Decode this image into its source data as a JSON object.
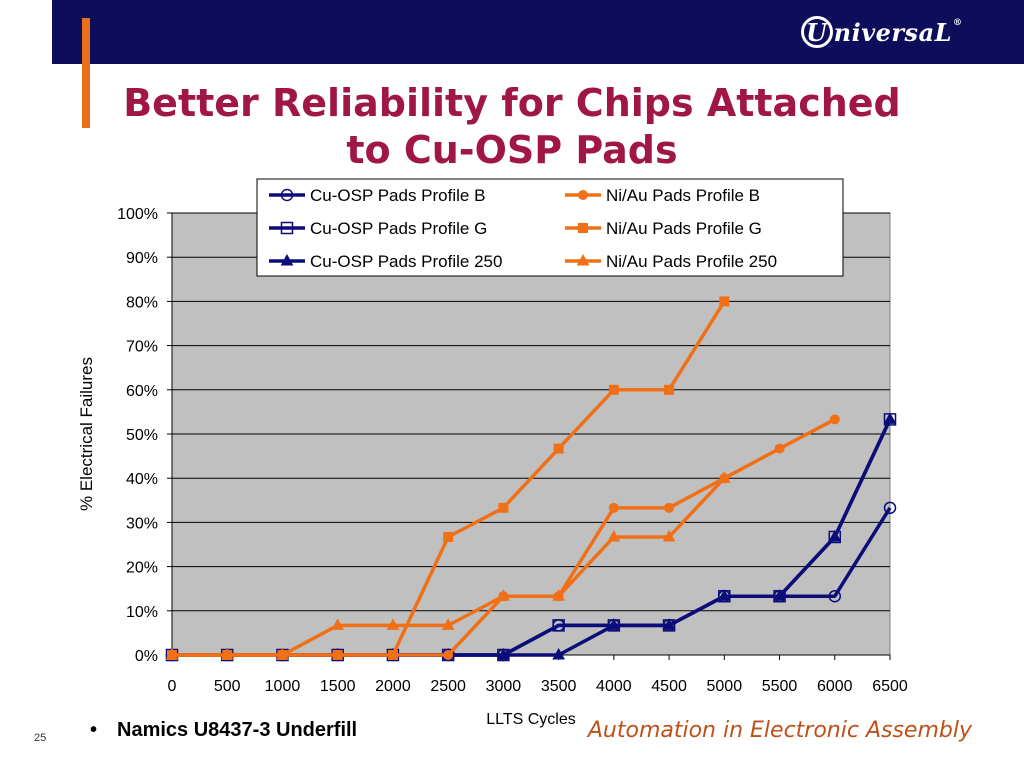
{
  "slide": {
    "title": "Better Reliability for Chips Attached to Cu-OSP Pads",
    "logo_text": "niversaL",
    "logo_letter": "U",
    "logo_reg": "®",
    "bullet_text": "Namics U8437-3 Underfill",
    "bullet_symbol": "•",
    "slide_number": "25",
    "tagline": "Automation in Electronic Assembly"
  },
  "colors": {
    "header_band": "#0d0d5c",
    "accent": "#e8701a",
    "title": "#a01744",
    "plot_bg": "#c0c0c0",
    "cu_series": "#0d0d7a",
    "ni_series": "#f07018"
  },
  "chart_data": {
    "type": "line",
    "xlabel": "LLTS Cycles",
    "ylabel": "% Electrical Failures",
    "x_ticks": [
      0,
      500,
      1000,
      1500,
      2000,
      2500,
      3000,
      3500,
      4000,
      4500,
      5000,
      5500,
      6000,
      6500
    ],
    "y_ticks": [
      "0%",
      "10%",
      "20%",
      "30%",
      "40%",
      "50%",
      "60%",
      "70%",
      "80%",
      "90%",
      "100%"
    ],
    "xlim": [
      0,
      6500
    ],
    "ylim": [
      0,
      100
    ],
    "grid": true,
    "legend_position": "top-right",
    "series": [
      {
        "name": "Cu-OSP Pads Profile B",
        "color": "#0d0d7a",
        "marker": "circle-open",
        "x": [
          0,
          500,
          1000,
          1500,
          2000,
          2500,
          3000,
          3500,
          4000,
          4500,
          5000,
          5500,
          6000,
          6500
        ],
        "y": [
          0,
          0,
          0,
          0,
          0,
          0,
          0,
          6.7,
          6.7,
          6.7,
          13.3,
          13.3,
          13.3,
          33.3
        ]
      },
      {
        "name": "Cu-OSP Pads Profile G",
        "color": "#0d0d7a",
        "marker": "square-open",
        "x": [
          0,
          500,
          1000,
          1500,
          2000,
          2500,
          3000,
          3500,
          4000,
          4500,
          5000,
          5500,
          6000,
          6500
        ],
        "y": [
          0,
          0,
          0,
          0,
          0,
          0,
          0,
          6.7,
          6.7,
          6.7,
          13.3,
          13.3,
          26.7,
          53.3
        ]
      },
      {
        "name": "Cu-OSP Pads Profile 250",
        "color": "#0d0d7a",
        "marker": "triangle",
        "x": [
          0,
          500,
          1000,
          1500,
          2000,
          2500,
          3000,
          3500,
          4000,
          4500,
          5000,
          5500,
          6000,
          6500
        ],
        "y": [
          0,
          0,
          0,
          0,
          0,
          0,
          0,
          0,
          6.7,
          6.7,
          13.3,
          13.3,
          26.7,
          53.3
        ]
      },
      {
        "name": "Ni/Au Pads Profile B",
        "color": "#f07018",
        "marker": "circle",
        "x": [
          0,
          500,
          1000,
          1500,
          2000,
          2500,
          3000,
          3500,
          4000,
          4500,
          5000,
          5500,
          6000
        ],
        "y": [
          0,
          0,
          0,
          0,
          0,
          0,
          13.3,
          13.3,
          33.3,
          33.3,
          40,
          46.7,
          53.3
        ]
      },
      {
        "name": "Ni/Au Pads Profile G",
        "color": "#f07018",
        "marker": "square",
        "x": [
          0,
          500,
          1000,
          1500,
          2000,
          2500,
          3000,
          3500,
          4000,
          4500,
          5000
        ],
        "y": [
          0,
          0,
          0,
          0,
          0,
          26.7,
          33.3,
          46.7,
          60,
          60,
          80
        ]
      },
      {
        "name": "Ni/Au Pads Profile 250",
        "color": "#f07018",
        "marker": "triangle",
        "x": [
          0,
          500,
          1000,
          1500,
          2000,
          2500,
          3000,
          3500,
          4000,
          4500,
          5000
        ],
        "y": [
          0,
          0,
          0,
          6.7,
          6.7,
          6.7,
          13.3,
          13.3,
          26.7,
          26.7,
          40
        ]
      }
    ]
  }
}
